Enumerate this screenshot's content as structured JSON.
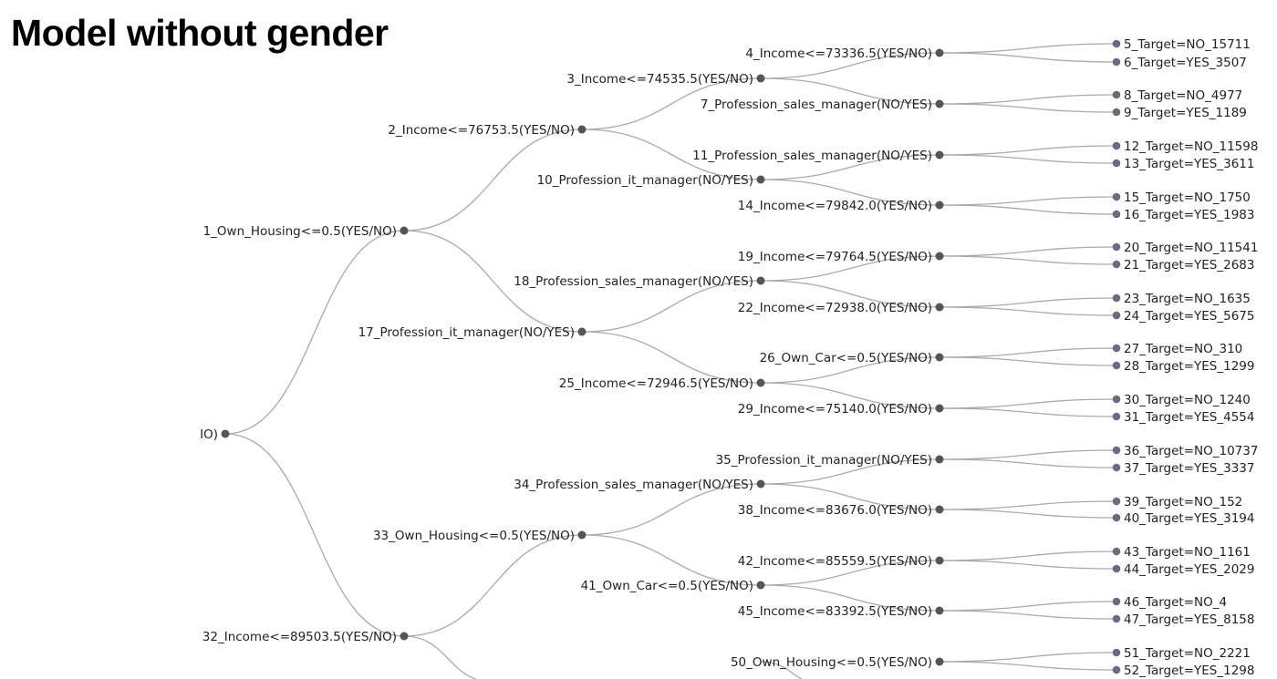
{
  "title": "Model without gender",
  "colors": {
    "link": "#aaaaaa",
    "node": "#555555",
    "leaf": "#6e6a7e",
    "text": "#222222"
  },
  "root_label_fragment": "IO)",
  "nodes": [
    {
      "id": 1,
      "label": "1_Own_Housing<=0.5(YES/NO)",
      "children": [
        2,
        17
      ]
    },
    {
      "id": 2,
      "label": "2_Income<=76753.5(YES/NO)",
      "children": [
        3,
        10
      ]
    },
    {
      "id": 3,
      "label": "3_Income<=74535.5(YES/NO)",
      "children": [
        4,
        7
      ]
    },
    {
      "id": 4,
      "label": "4_Income<=73336.5(YES/NO)",
      "children": [
        5,
        6
      ]
    },
    {
      "id": 5,
      "label": "5_Target=NO_15711",
      "leaf": true
    },
    {
      "id": 6,
      "label": "6_Target=YES_3507",
      "leaf": true
    },
    {
      "id": 7,
      "label": "7_Profession_sales_manager(NO/YES)",
      "children": [
        8,
        9
      ]
    },
    {
      "id": 8,
      "label": "8_Target=NO_4977",
      "leaf": true
    },
    {
      "id": 9,
      "label": "9_Target=YES_1189",
      "leaf": true
    },
    {
      "id": 10,
      "label": "10_Profession_it_manager(NO/YES)",
      "children": [
        11,
        14
      ]
    },
    {
      "id": 11,
      "label": "11_Profession_sales_manager(NO/YES)",
      "children": [
        12,
        13
      ]
    },
    {
      "id": 12,
      "label": "12_Target=NO_11598",
      "leaf": true
    },
    {
      "id": 13,
      "label": "13_Target=YES_3611",
      "leaf": true
    },
    {
      "id": 14,
      "label": "14_Income<=79842.0(YES/NO)",
      "children": [
        15,
        16
      ]
    },
    {
      "id": 15,
      "label": "15_Target=NO_1750",
      "leaf": true
    },
    {
      "id": 16,
      "label": "16_Target=YES_1983",
      "leaf": true
    },
    {
      "id": 17,
      "label": "17_Profession_it_manager(NO/YES)",
      "children": [
        18,
        25
      ]
    },
    {
      "id": 18,
      "label": "18_Profession_sales_manager(NO/YES)",
      "children": [
        19,
        22
      ]
    },
    {
      "id": 19,
      "label": "19_Income<=79764.5(YES/NO)",
      "children": [
        20,
        21
      ]
    },
    {
      "id": 20,
      "label": "20_Target=NO_11541",
      "leaf": true
    },
    {
      "id": 21,
      "label": "21_Target=YES_2683",
      "leaf": true
    },
    {
      "id": 22,
      "label": "22_Income<=72938.0(YES/NO)",
      "children": [
        23,
        24
      ]
    },
    {
      "id": 23,
      "label": "23_Target=NO_1635",
      "leaf": true
    },
    {
      "id": 24,
      "label": "24_Target=YES_5675",
      "leaf": true
    },
    {
      "id": 25,
      "label": "25_Income<=72946.5(YES/NO)",
      "children": [
        26,
        29
      ]
    },
    {
      "id": 26,
      "label": "26_Own_Car<=0.5(YES/NO)",
      "children": [
        27,
        28
      ]
    },
    {
      "id": 27,
      "label": "27_Target=NO_310",
      "leaf": true
    },
    {
      "id": 28,
      "label": "28_Target=YES_1299",
      "leaf": true
    },
    {
      "id": 29,
      "label": "29_Income<=75140.0(YES/NO)",
      "children": [
        30,
        31
      ]
    },
    {
      "id": 30,
      "label": "30_Target=NO_1240",
      "leaf": true
    },
    {
      "id": 31,
      "label": "31_Target=YES_4554",
      "leaf": true
    },
    {
      "id": 32,
      "label": "32_Income<=89503.5(YES/NO)",
      "children": [
        33
      ]
    },
    {
      "id": 33,
      "label": "33_Own_Housing<=0.5(YES/NO)",
      "children": [
        34,
        41
      ]
    },
    {
      "id": 34,
      "label": "34_Profession_sales_manager(NO/YES)",
      "children": [
        35,
        38
      ]
    },
    {
      "id": 35,
      "label": "35_Profession_it_manager(NO/YES)",
      "children": [
        36,
        37
      ]
    },
    {
      "id": 36,
      "label": "36_Target=NO_10737",
      "leaf": true
    },
    {
      "id": 37,
      "label": "37_Target=YES_3337",
      "leaf": true
    },
    {
      "id": 38,
      "label": "38_Income<=83676.0(YES/NO)",
      "children": [
        39,
        40
      ]
    },
    {
      "id": 39,
      "label": "39_Target=NO_152",
      "leaf": true
    },
    {
      "id": 40,
      "label": "40_Target=YES_3194",
      "leaf": true
    },
    {
      "id": 41,
      "label": "41_Own_Car<=0.5(YES/NO)",
      "children": [
        42,
        45
      ]
    },
    {
      "id": 42,
      "label": "42_Income<=85559.5(YES/NO)",
      "children": [
        43,
        44
      ]
    },
    {
      "id": 43,
      "label": "43_Target=NO_1161",
      "leaf": true
    },
    {
      "id": 44,
      "label": "44_Target=YES_2029",
      "leaf": true
    },
    {
      "id": 45,
      "label": "45_Income<=83392.5(YES/NO)",
      "children": [
        46,
        47
      ]
    },
    {
      "id": 46,
      "label": "46_Target=NO_4",
      "leaf": true
    },
    {
      "id": 47,
      "label": "47_Target=YES_8158",
      "leaf": true
    },
    {
      "id": 50,
      "label": "50_Own_Housing<=0.5(YES/NO)",
      "children": [
        51,
        52
      ]
    },
    {
      "id": 51,
      "label": "51_Target=NO_2221",
      "leaf": true
    },
    {
      "id": 52,
      "label": "52_Target=YES_1298",
      "leaf": true
    }
  ]
}
